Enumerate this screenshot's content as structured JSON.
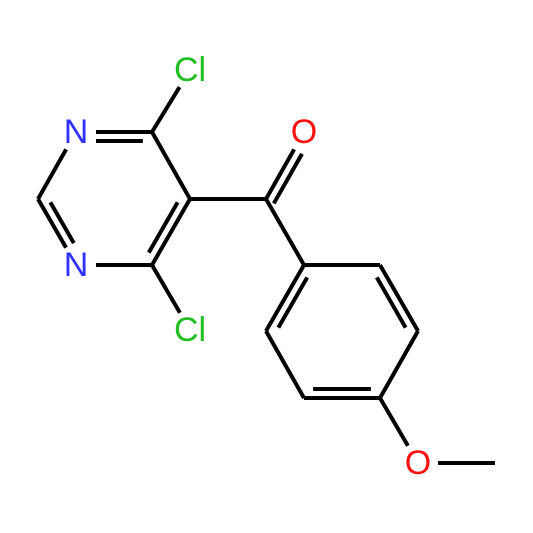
{
  "atoms": [
    {
      "label": "Cl"
    },
    {
      "label": "N"
    },
    {
      "label": "N"
    },
    {
      "label": "Cl"
    },
    {
      "label": "O"
    },
    {
      "label": "O"
    }
  ]
}
